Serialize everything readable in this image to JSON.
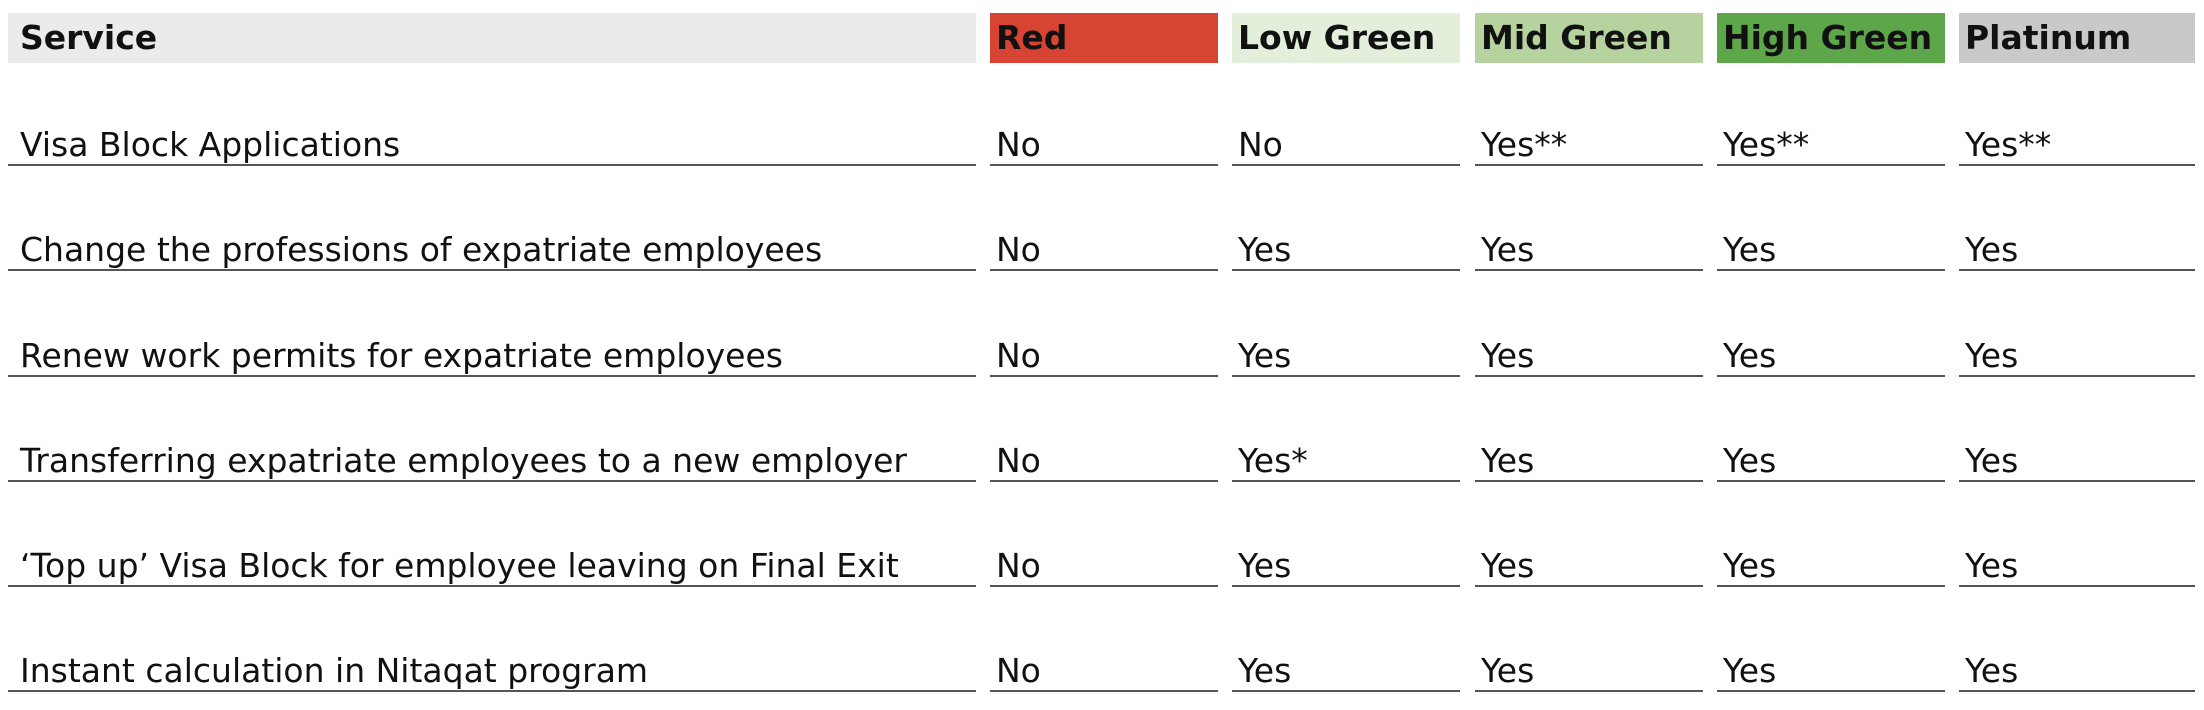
{
  "table": {
    "headers": [
      {
        "label": "Service",
        "color": "#ebebeb"
      },
      {
        "label": "Red",
        "color": "#d84433"
      },
      {
        "label": "Low Green",
        "color": "#e3eedb"
      },
      {
        "label": "Mid Green",
        "color": "#b6d29e"
      },
      {
        "label": "High Green",
        "color": "#5ea64a"
      },
      {
        "label": "Platinum",
        "color": "#c9c9c9"
      }
    ],
    "rows": [
      [
        "Visa Block Applications",
        "No",
        "No",
        "Yes**",
        "Yes**",
        "Yes**"
      ],
      [
        "Change the professions of expatriate employees",
        "No",
        "Yes",
        "Yes",
        "Yes",
        "Yes"
      ],
      [
        "Renew work permits for expatriate employees",
        "No",
        "Yes",
        "Yes",
        "Yes",
        "Yes"
      ],
      [
        "Transferring expatriate employees to a new employer",
        "No",
        "Yes*",
        "Yes",
        "Yes",
        "Yes"
      ],
      [
        "‘Top up’ Visa Block for employee leaving on Final Exit",
        "No",
        "Yes",
        "Yes",
        "Yes",
        "Yes"
      ],
      [
        "Instant calculation in Nitaqat program",
        "No",
        "Yes",
        "Yes",
        "Yes",
        "Yes"
      ]
    ]
  }
}
